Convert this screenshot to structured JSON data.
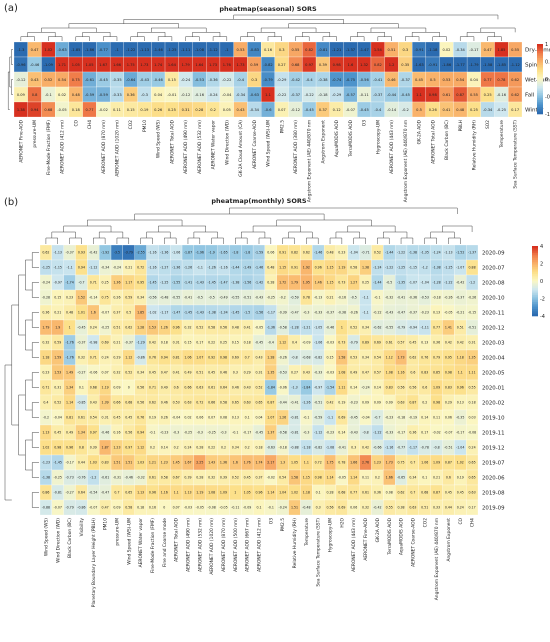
{
  "panel_labels": {
    "a": "(a)",
    "b": "(b)"
  },
  "colors": {
    "scale": [
      "#2b6bb0",
      "#4d93cb",
      "#8ec4e1",
      "#cfe7ef",
      "#fbf7c3",
      "#fce08a",
      "#f9b26a",
      "#f07d4a",
      "#d7301f"
    ],
    "text": "#222222",
    "grid": "#ffffff",
    "tree": "#444444"
  },
  "chart_data": [
    {
      "type": "heatmap",
      "title": "pheatmap(seasonal) SORS",
      "rows": [
        "Dry-summer",
        "Sping",
        "Wet-summer",
        "Fall",
        "Winter"
      ],
      "columns": [
        "AERONET Fine-AOD",
        "pressure-UM",
        "Fine-Mode Fraction (FMF)",
        "AERONET AOD (412 nm)",
        "CO",
        "CH4",
        "AERONET AOD (870 nm)",
        "AERONET AOD (1020 nm)",
        "CO2",
        "PM10",
        "Wind Speed (WS)",
        "AERONET Total AOD",
        "AERONET AOD (490 nm)",
        "AERONET AOD (532 nm)",
        "AERONET Water vapor",
        "Wind Direction (WD)",
        "GK-2A Cloud Amount (CA)",
        "AERONET Coarse-AOD",
        "Wind Speed (WS)-UM",
        "PM2.5",
        "AERONET AOD (380 nm)",
        "Angstrom Exponent (AE) 440/870 nm",
        "Angstrom Exponent",
        "AquaMODIS AOD",
        "TerraMODIS AOD",
        "O3",
        "Hygroscopy-UM",
        "AERONET AOD (443 nm)",
        "Angstrom Exponent (AE) 440/870 nm",
        "GK-2A AOD",
        "AERONET Total AOD",
        "Black Carbon (BC)",
        "PBLH",
        "Relative Humidity (RH)",
        "SO2",
        "Temperature",
        "Sea Surface Temperature (SST)"
      ],
      "values": [
        [
          -1.3,
          0.47,
          1.02,
          -0.63,
          -1.85,
          -1.86,
          -0.77,
          -1.0,
          -1.22,
          -1.13,
          -1.46,
          -1.25,
          -1.11,
          -1.08,
          -1.12,
          -1.0,
          0.53,
          -0.83,
          0.16,
          0.3,
          0.55,
          0.82,
          -0.81,
          -1.21,
          -1.37,
          -1.47,
          1.54,
          0.51,
          0.3,
          -0.91,
          -1.18,
          0.02,
          -0.34,
          -0.17,
          0.47,
          1.85,
          0.55
        ],
        [
          -0.96,
          -0.46,
          -1.09,
          1.71,
          1.05,
          1.05,
          1.67,
          1.66,
          1.75,
          1.73,
          1.74,
          1.64,
          1.79,
          1.64,
          1.73,
          1.76,
          1.73,
          0.59,
          -0.82,
          0.27,
          0.68,
          0.97,
          0.39,
          0.98,
          1.6,
          1.32,
          0.82,
          1.2,
          0.35,
          -1.63,
          -0.91,
          -1.86,
          -1.77,
          -1.79,
          -1.58,
          -1.85,
          -1.12
        ],
        [
          -0.12,
          0.43,
          0.52,
          0.54,
          0.75,
          -0.61,
          -0.45,
          -0.35,
          -0.64,
          -0.43,
          -0.46,
          0.15,
          -0.24,
          -0.53,
          -0.36,
          -0.22,
          -0.4,
          0.3,
          -0.79,
          -0.29,
          -0.42,
          -0.4,
          -0.38,
          -0.74,
          -0.75,
          -0.56,
          -0.41,
          0.46,
          -0.37,
          0.45,
          0.5,
          0.53,
          0.54,
          0.04,
          0.77,
          0.78,
          0.62
        ],
        [
          0.09,
          0.8,
          -0.1,
          0.02,
          0.48,
          -0.59,
          -0.59,
          -0.33,
          0.36,
          -0.3,
          0.04,
          -0.01,
          -0.12,
          -0.16,
          -0.24,
          -0.04,
          -0.34,
          -0.63,
          1.1,
          -0.22,
          -0.37,
          -0.22,
          -0.18,
          -0.29,
          -0.57,
          -0.11,
          -0.37,
          -0.44,
          -0.45,
          1.1,
          0.98,
          0.61,
          0.87,
          0.55,
          0.25,
          -0.16,
          0.62
        ],
        [
          1.38,
          0.94,
          0.68,
          -0.05,
          0.18,
          0.77,
          -0.02,
          0.11,
          0.15,
          0.19,
          0.26,
          0.25,
          0.31,
          0.28,
          0.2,
          0.05,
          0.43,
          -0.34,
          -0.6,
          0.07,
          -0.12,
          -0.45,
          0.37,
          0.12,
          -0.07,
          -0.45,
          -0.4,
          -0.14,
          -0.2,
          0.5,
          0.26,
          0.41,
          0.48,
          0.25,
          -0.34,
          -0.25,
          0.17
        ]
      ],
      "legend": {
        "min": -1,
        "max": 1,
        "ticks": [
          1,
          0.5,
          0,
          -0.5,
          -1
        ]
      }
    },
    {
      "type": "heatmap",
      "title": "pheatmap(monthly) SORS",
      "rows": [
        "2020-09",
        "2020-07",
        "2020-08",
        "2020-10",
        "2020-11",
        "2020-12",
        "2020-03",
        "2020-04",
        "2020-05",
        "2020-01",
        "2020-02",
        "2019-10",
        "2019-11",
        "2019-12",
        "2019-07",
        "2020-06",
        "2019-08",
        "2019-09"
      ],
      "columns": [
        "Wind Speed (WS)",
        "Wind Direction (WD)",
        "Black Carbon (BC)",
        "Visibility",
        "Planetary Boundary Layer Height (PBLH)",
        "PM10",
        "pressure-UM",
        "Wind Speed (WS)-UM",
        "AERONET Water vapor",
        "Fine-Mode Fraction (FMF)",
        "Fine and Coarse mode",
        "AERONET Total AOD",
        "AERONET AOD (490 nm)",
        "AERONET AOD (532 nm)",
        "AERONET AOD (1020 nm)",
        "AERONET AOD (870 nm)",
        "AERONET AOD (500 nm)",
        "AERONET AOD (667 nm)",
        "AERONET AOD (412 nm)",
        "O3",
        "PM2.5",
        "Relative Humidity (RH)",
        "Temperature",
        "Sea Surface Temperature (SST)",
        "Hygroscopy-UM",
        "H2O",
        "AERONET AOD (443 nm)",
        "AERONET Fine-AOD",
        "GK-2A AOD",
        "TerraMODIS AOD",
        "AquaMODIS AOD",
        "AERONET Coarse-AOD",
        "CO2",
        "Angstrom Exponent (AE) 440/870 nm",
        "Angstrom Exponent",
        "CO",
        "CH4"
      ],
      "values": [
        [
          0.62,
          -1.13,
          -0.37,
          0.93,
          -0.42,
          -1.92,
          -3.5,
          -3.79,
          -2.55,
          -1.16,
          -1.36,
          -1.06,
          -1.87,
          -1.96,
          -1.9,
          -1.65,
          -1.8,
          -1.8,
          -1.59,
          0.06,
          0.91,
          0.82,
          0.62,
          -1.46,
          0.48,
          0.23,
          -1.04,
          -0.71,
          0.52,
          -1.44,
          -1.22,
          -1.38,
          -1.35,
          -1.24,
          -1.13,
          -1.52,
          -1.37
        ],
        [
          -1.25,
          -1.15,
          -1.1,
          0.94,
          -1.12,
          -0.34,
          -0.24,
          0.21,
          0.72,
          -1.16,
          -1.27,
          -1.36,
          -1.26,
          -1.1,
          -1.26,
          -1.16,
          -1.44,
          -1.49,
          -1.46,
          0.48,
          1.15,
          0.91,
          1.92,
          0.96,
          1.15,
          1.19,
          0.58,
          1.38,
          -1.24,
          -1.22,
          -1.25,
          -1.15,
          -1.2,
          -1.38,
          -1.25,
          -1.07,
          0.88
        ],
        [
          -0.24,
          -0.97,
          -1.74,
          -0.7,
          0.71,
          0.25,
          1.36,
          1.17,
          0.95,
          -1.45,
          -1.25,
          -1.55,
          -1.41,
          -1.43,
          -1.45,
          -1.47,
          -1.38,
          -1.56,
          -1.42,
          0.28,
          1.72,
          1.79,
          1.95,
          1.46,
          1.15,
          0.73,
          1.27,
          0.25,
          -1.44,
          -0.5,
          -1.35,
          -1.07,
          -1.04,
          -1.28,
          -1.22,
          -0.42,
          -1.2
        ],
        [
          -0.28,
          0.15,
          0.23,
          1.52,
          -0.14,
          0.75,
          0.26,
          0.59,
          0.34,
          -0.56,
          -0.48,
          -0.55,
          -0.41,
          -0.5,
          -0.5,
          -0.49,
          -0.55,
          -0.51,
          -0.43,
          -0.25,
          -0.2,
          -0.59,
          0.78,
          -0.13,
          0.21,
          -0.16,
          -0.5,
          -1.1,
          -0.1,
          -0.32,
          -0.41,
          -0.36,
          -0.53,
          -0.18,
          -0.26,
          -0.37,
          -0.26
        ],
        [
          0.36,
          0.21,
          0.48,
          1.01,
          1.6,
          -0.07,
          0.37,
          0.5,
          1.85,
          -1.02,
          -1.17,
          -1.47,
          -1.45,
          -1.43,
          -1.38,
          -1.34,
          -1.45,
          -1.5,
          -1.56,
          -1.17,
          -0.39,
          -0.47,
          -0.3,
          -0.33,
          -0.37,
          -0.38,
          -0.26,
          -1.1,
          -0.22,
          -0.43,
          -0.47,
          -0.37,
          -0.23,
          0.13,
          -0.05,
          -0.21,
          -0.15
        ],
        [
          1.79,
          1.9,
          1.0,
          -0.45,
          0.24,
          -0.25,
          0.51,
          0.62,
          1.28,
          1.53,
          1.26,
          0.96,
          0.32,
          0.52,
          0.58,
          0.56,
          0.48,
          0.41,
          -0.05,
          -1.36,
          -0.58,
          -1.28,
          -1.21,
          -1.05,
          -0.46,
          1.0,
          0.52,
          0.34,
          -0.62,
          -0.55,
          -0.79,
          -0.94,
          -1.11,
          0.77,
          1.41,
          0.51,
          -0.51
        ],
        [
          0.32,
          0.59,
          -1.76,
          -0.37,
          -0.98,
          0.69,
          0.21,
          -0.37,
          -1.29,
          0.42,
          0.18,
          0.31,
          0.15,
          0.17,
          0.22,
          0.25,
          0.15,
          0.18,
          -0.45,
          -0.4,
          1.12,
          0.4,
          -0.09,
          -1.06,
          -0.03,
          0.73,
          -0.79,
          0.89,
          0.69,
          0.61,
          0.57,
          0.45,
          0.13,
          0.36,
          0.42,
          0.42,
          0.31
        ],
        [
          1.18,
          1.59,
          -1.76,
          0.32,
          0.71,
          0.24,
          0.29,
          1.12,
          -0.86,
          0.76,
          0.94,
          0.81,
          1.06,
          1.07,
          0.92,
          0.98,
          0.69,
          0.7,
          0.43,
          1.28,
          -0.26,
          -0.8,
          -0.68,
          -0.82,
          0.15,
          1.58,
          0.53,
          0.34,
          0.54,
          1.12,
          1.73,
          0.62,
          0.76,
          0.79,
          0.95,
          1.18,
          1.35
        ],
        [
          0.23,
          1.53,
          1.49,
          -0.27,
          -0.06,
          0.07,
          0.32,
          0.52,
          0.34,
          0.45,
          0.47,
          0.41,
          0.49,
          0.51,
          0.45,
          0.46,
          0.3,
          0.29,
          0.31,
          1.35,
          -0.53,
          0.27,
          0.43,
          -0.33,
          -0.03,
          1.08,
          0.49,
          0.47,
          0.57,
          1.08,
          1.16,
          0.6,
          0.83,
          0.85,
          0.98,
          1.1,
          1.11
        ],
        [
          0.71,
          0.31,
          1.34,
          0.1,
          0.68,
          1.19,
          0.09,
          -0.0,
          0.56,
          0.71,
          0.49,
          0.6,
          0.66,
          0.63,
          0.61,
          0.64,
          0.46,
          0.43,
          0.52,
          -1.84,
          -0.06,
          -1.3,
          -1.84,
          -0.97,
          -1.54,
          1.11,
          0.14,
          -0.24,
          0.14,
          0.83,
          0.56,
          0.56,
          0.6,
          1.09,
          0.83,
          0.96,
          0.55
        ],
        [
          0.4,
          0.52,
          1.14,
          -0.85,
          0.43,
          1.39,
          0.66,
          0.68,
          0.56,
          0.62,
          0.46,
          0.53,
          0.63,
          0.72,
          0.66,
          0.58,
          0.65,
          0.63,
          0.65,
          0.87,
          -0.44,
          -0.41,
          -1.26,
          -0.51,
          0.42,
          0.19,
          -0.23,
          0.09,
          0.09,
          0.09,
          0.63,
          0.87,
          0.2,
          0.98,
          0.29,
          0.13,
          0.18
        ],
        [
          -0.2,
          -0.04,
          0.81,
          0.61,
          0.54,
          0.31,
          0.45,
          0.45,
          0.76,
          0.19,
          0.26,
          -0.04,
          0.02,
          0.06,
          0.07,
          0.08,
          0.13,
          0.1,
          0.04,
          1.07,
          1.26,
          -0.81,
          -0.1,
          -0.59,
          -1.1,
          0.69,
          -0.45,
          -0.04,
          -0.7,
          -0.23,
          -0.18,
          -0.19,
          0.14,
          0.11,
          0.06,
          -0.35,
          0.03
        ],
        [
          1.13,
          0.45,
          0.49,
          1.34,
          0.97,
          -0.46,
          0.16,
          0.56,
          0.94,
          -0.1,
          -0.23,
          -0.3,
          -0.25,
          -0.3,
          -0.25,
          -0.3,
          -0.1,
          -0.17,
          -0.45,
          1.37,
          -0.58,
          -0.81,
          -0.3,
          -1.12,
          -0.23,
          0.14,
          -0.43,
          -0.8,
          -1.22,
          -0.33,
          -0.17,
          0.36,
          0.17,
          -0.02,
          -0.07,
          -0.17,
          -0.08
        ],
        [
          1.02,
          0.98,
          0.96,
          0.8,
          0.39,
          1.87,
          1.23,
          0.97,
          1.12,
          0.2,
          0.14,
          0.2,
          0.24,
          0.28,
          0.22,
          0.2,
          0.34,
          0.2,
          0.18,
          -0.63,
          -0.18,
          -0.88,
          -1.18,
          -0.82,
          -1.08,
          -0.41,
          0.3,
          0.42,
          -0.66,
          -1.16,
          -0.77,
          -1.17,
          -0.78,
          -0.8,
          -0.51,
          -1.04,
          0.24
        ],
        [
          -1.23,
          -1.45,
          -0.17,
          0.44,
          1.03,
          0.83,
          1.51,
          1.51,
          1.03,
          1.21,
          1.23,
          1.45,
          1.67,
          2.25,
          1.43,
          1.36,
          1.6,
          1.76,
          1.74,
          2.17,
          1.3,
          1.05,
          1.1,
          0.72,
          1.75,
          0.78,
          1.66,
          2.76,
          1.23,
          1.73,
          0.75,
          0.7,
          1.06,
          1.09,
          0.87,
          1.02,
          0.65
        ],
        [
          -1.38,
          -0.25,
          -0.73,
          -0.76,
          -1.2,
          -0.61,
          -0.31,
          -0.46,
          -0.32,
          0.61,
          0.58,
          0.67,
          0.39,
          0.28,
          0.32,
          0.39,
          0.52,
          0.45,
          0.37,
          -0.02,
          0.54,
          1.58,
          1.15,
          0.98,
          1.14,
          -0.05,
          1.14,
          0.11,
          0.2,
          1.66,
          -0.65,
          0.34,
          0.1,
          0.21,
          0.6,
          0.19,
          0.65
        ],
        [
          0.86,
          -0.81,
          -0.27,
          0.64,
          -0.54,
          -0.47,
          0.7,
          0.65,
          1.13,
          0.96,
          1.16,
          1.1,
          1.13,
          1.19,
          1.08,
          1.09,
          1.0,
          1.05,
          0.96,
          1.14,
          1.04,
          1.02,
          1.18,
          0.1,
          0.28,
          0.68,
          0.77,
          0.61,
          0.36,
          0.08,
          0.62,
          0.7,
          0.68,
          0.87,
          0.45,
          0.45,
          0.63
        ],
        [
          -0.88,
          -0.07,
          -0.79,
          -0.86,
          -0.07,
          0.47,
          0.09,
          0.58,
          0.18,
          0.16,
          0.0,
          0.07,
          -0.03,
          -0.05,
          -0.08,
          -0.05,
          -0.11,
          -0.09,
          0.1,
          -0.1,
          -0.24,
          1.51,
          -0.48,
          0.3,
          0.56,
          0.69,
          0.06,
          0.32,
          -0.42,
          0.55,
          0.38,
          0.63,
          0.51,
          0.33,
          0.44,
          0.24,
          0.17
        ]
      ],
      "legend": {
        "min": -4,
        "max": 4,
        "ticks": [
          4,
          2,
          0,
          -2,
          -4
        ]
      }
    }
  ]
}
